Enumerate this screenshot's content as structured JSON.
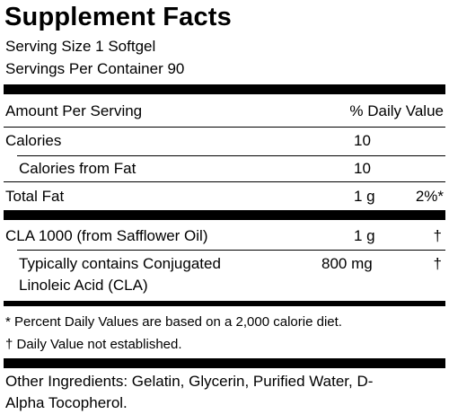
{
  "title": "Supplement Facts",
  "serving_size": "Serving Size 1 Softgel",
  "servings_per_container": "Servings Per Container 90",
  "header": {
    "amount": "Amount Per Serving",
    "daily_value": "% Daily Value"
  },
  "rows": [
    {
      "label": "Calories",
      "amount": "10",
      "dv": ""
    },
    {
      "label": "Calories from Fat",
      "amount": "10",
      "dv": ""
    },
    {
      "label": "Total Fat",
      "amount": "1 g",
      "dv": "2%*"
    },
    {
      "label": "CLA 1000 (from Safflower Oil)",
      "amount": "1 g",
      "dv": "†"
    },
    {
      "label_line1": "Typically contains Conjugated",
      "label_line2": "Linoleic Acid (CLA)",
      "amount": "800 mg",
      "dv": "†"
    }
  ],
  "footnotes": [
    "* Percent Daily Values are based on a 2,000 calorie diet.",
    "† Daily Value not established."
  ],
  "other_ingredients": {
    "line1": "Other Ingredients: Gelatin, Glycerin, Purified Water, D-",
    "line2": "Alpha Tocopherol."
  }
}
